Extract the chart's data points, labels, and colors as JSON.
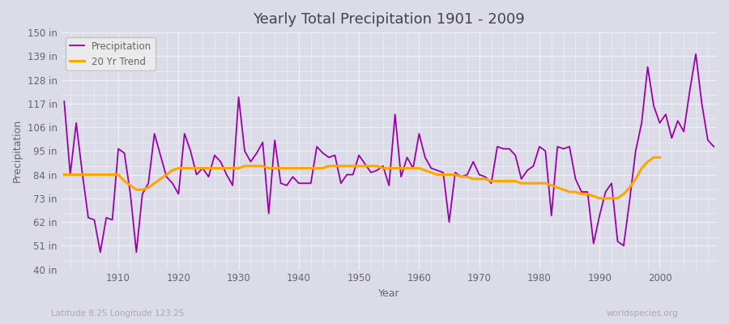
{
  "title": "Yearly Total Precipitation 1901 - 2009",
  "xlabel": "Year",
  "ylabel": "Precipitation",
  "subtitle": "Latitude 8.25 Longitude 123.25",
  "watermark": "worldspecies.org",
  "years": [
    1901,
    1902,
    1903,
    1904,
    1905,
    1906,
    1907,
    1908,
    1909,
    1910,
    1911,
    1912,
    1913,
    1914,
    1915,
    1916,
    1917,
    1918,
    1919,
    1920,
    1921,
    1922,
    1923,
    1924,
    1925,
    1926,
    1927,
    1928,
    1929,
    1930,
    1931,
    1932,
    1933,
    1934,
    1935,
    1936,
    1937,
    1938,
    1939,
    1940,
    1941,
    1942,
    1943,
    1944,
    1945,
    1946,
    1947,
    1948,
    1949,
    1950,
    1951,
    1952,
    1953,
    1954,
    1955,
    1956,
    1957,
    1958,
    1959,
    1960,
    1961,
    1962,
    1963,
    1964,
    1965,
    1966,
    1967,
    1968,
    1969,
    1970,
    1971,
    1972,
    1973,
    1974,
    1975,
    1976,
    1977,
    1978,
    1979,
    1980,
    1981,
    1982,
    1983,
    1984,
    1985,
    1986,
    1987,
    1988,
    1989,
    1990,
    1991,
    1992,
    1993,
    1994,
    1995,
    1996,
    1997,
    1998,
    1999,
    2000,
    2001,
    2002,
    2003,
    2004,
    2005,
    2006,
    2007,
    2008,
    2009
  ],
  "precip": [
    118,
    84,
    108,
    85,
    64,
    63,
    48,
    64,
    63,
    96,
    94,
    75,
    48,
    75,
    80,
    103,
    93,
    83,
    80,
    75,
    103,
    95,
    84,
    87,
    83,
    93,
    90,
    84,
    79,
    120,
    95,
    90,
    94,
    99,
    66,
    100,
    80,
    79,
    83,
    80,
    80,
    80,
    97,
    94,
    92,
    93,
    80,
    84,
    84,
    93,
    89,
    85,
    86,
    88,
    79,
    112,
    83,
    92,
    87,
    103,
    92,
    87,
    86,
    85,
    62,
    85,
    83,
    84,
    90,
    84,
    83,
    80,
    97,
    96,
    96,
    93,
    82,
    86,
    88,
    97,
    95,
    65,
    97,
    96,
    97,
    82,
    76,
    76,
    52,
    65,
    76,
    80,
    53,
    51,
    72,
    95,
    108,
    134,
    116,
    108,
    112,
    101,
    109,
    104,
    123,
    140,
    117,
    100,
    97
  ],
  "trend": [
    84,
    84,
    84,
    84,
    84,
    84,
    84,
    84,
    84,
    84,
    81,
    79,
    77,
    77,
    78,
    80,
    82,
    84,
    86,
    87,
    87,
    87,
    87,
    87,
    87,
    87,
    87,
    87,
    87,
    87,
    88,
    88,
    88,
    88,
    87,
    87,
    87,
    87,
    87,
    87,
    87,
    87,
    87,
    87,
    88,
    88,
    88,
    88,
    88,
    88,
    88,
    88,
    88,
    87,
    87,
    87,
    87,
    87,
    87,
    87,
    86,
    85,
    84,
    84,
    84,
    84,
    83,
    83,
    82,
    82,
    82,
    81,
    81,
    81,
    81,
    81,
    80,
    80,
    80,
    80,
    80,
    79,
    78,
    77,
    76,
    76,
    75,
    75,
    74,
    73,
    73,
    73,
    73,
    75,
    78,
    82,
    87,
    90,
    92,
    92
  ],
  "ylim": [
    40,
    150
  ],
  "yticks": [
    40,
    51,
    62,
    73,
    84,
    95,
    106,
    117,
    128,
    139,
    150
  ],
  "ytick_labels": [
    "40 in",
    "51 in",
    "62 in",
    "73 in",
    "84 in",
    "95 in",
    "106 in",
    "117 in",
    "128 in",
    "139 in",
    "150 in"
  ],
  "xticks": [
    1910,
    1920,
    1930,
    1940,
    1950,
    1960,
    1970,
    1980,
    1990,
    2000
  ],
  "precip_color": "#9900aa",
  "trend_color": "#ffa500",
  "bg_color": "#dcdce8",
  "plot_bg_color": "#dcdce8",
  "grid_color": "#f0f0f8",
  "title_color": "#444444",
  "axis_color": "#666666",
  "legend_bg": "#eeeeee"
}
